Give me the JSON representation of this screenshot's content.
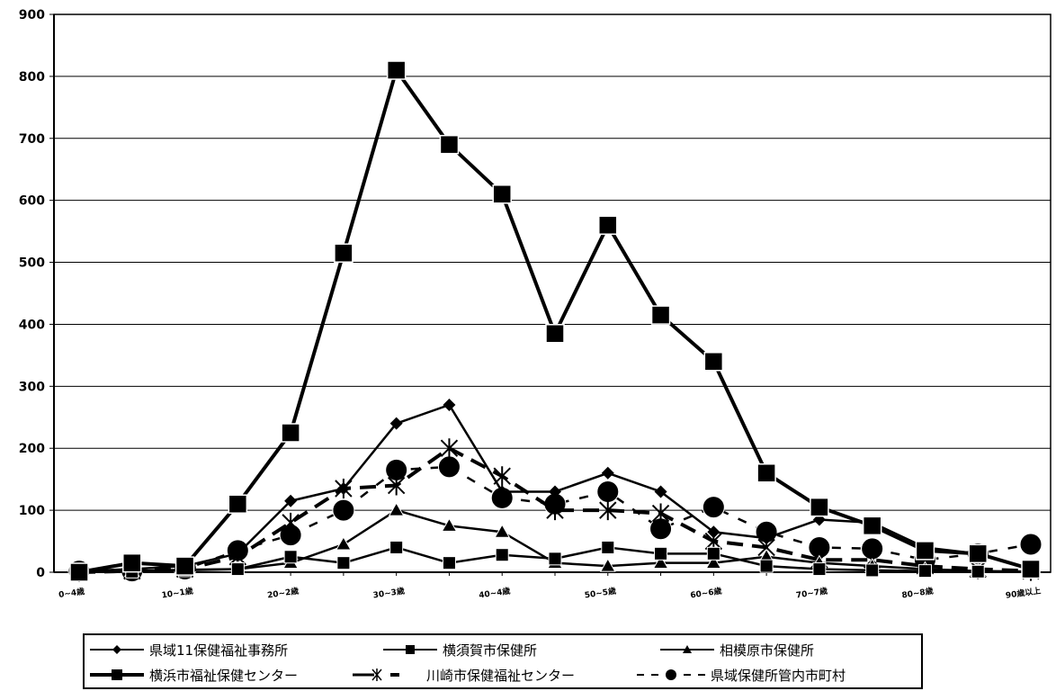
{
  "chart_data": {
    "type": "line",
    "title": "",
    "xlabel": "",
    "ylabel": "",
    "categories": [
      "0~4歳",
      "",
      "10~1歳",
      "",
      "20~2歳",
      "",
      "30~3歳",
      "",
      "40~4歳",
      "",
      "50~5歳",
      "",
      "60~6歳",
      "",
      "70~7歳",
      "",
      "80~8歳",
      "",
      "90歳以上"
    ],
    "ylim": [
      0,
      900
    ],
    "yticks": [
      0,
      100,
      200,
      300,
      400,
      500,
      600,
      700,
      800,
      900
    ],
    "grid": true,
    "legend_position": "bottom",
    "series": [
      {
        "name": "県域11保健福祉事務所",
        "marker": "diamond",
        "style": "solid",
        "weight": "normal",
        "values": [
          2,
          5,
          10,
          30,
          115,
          135,
          240,
          270,
          130,
          130,
          160,
          130,
          65,
          55,
          85,
          80,
          40,
          30,
          5
        ]
      },
      {
        "name": "横須賀市保健所",
        "marker": "square",
        "style": "solid",
        "weight": "normal",
        "values": [
          0,
          1,
          3,
          5,
          25,
          15,
          40,
          15,
          28,
          22,
          40,
          30,
          30,
          10,
          5,
          3,
          2,
          1,
          1
        ]
      },
      {
        "name": "相模原市保健所",
        "marker": "triangle",
        "style": "solid",
        "weight": "normal",
        "values": [
          1,
          2,
          4,
          5,
          15,
          45,
          100,
          75,
          65,
          15,
          10,
          15,
          15,
          25,
          15,
          10,
          5,
          2,
          1
        ]
      },
      {
        "name": "横浜市福祉保健センター",
        "marker": "square",
        "style": "solid",
        "weight": "bold",
        "values": [
          0,
          15,
          10,
          110,
          225,
          515,
          810,
          690,
          610,
          385,
          560,
          415,
          340,
          160,
          105,
          75,
          35,
          30,
          5
        ]
      },
      {
        "name": "川崎市保健福祉センター",
        "marker": "star",
        "style": "dash",
        "weight": "bold",
        "values": [
          0,
          2,
          5,
          25,
          80,
          135,
          140,
          200,
          155,
          100,
          100,
          95,
          50,
          40,
          20,
          20,
          10,
          5,
          2
        ]
      },
      {
        "name": "県域保健所管内市町村",
        "marker": "circle",
        "style": "dash",
        "weight": "normal",
        "values": [
          2,
          2,
          5,
          35,
          60,
          100,
          165,
          170,
          120,
          110,
          130,
          70,
          105,
          65,
          40,
          38,
          20,
          30,
          45
        ]
      }
    ]
  }
}
